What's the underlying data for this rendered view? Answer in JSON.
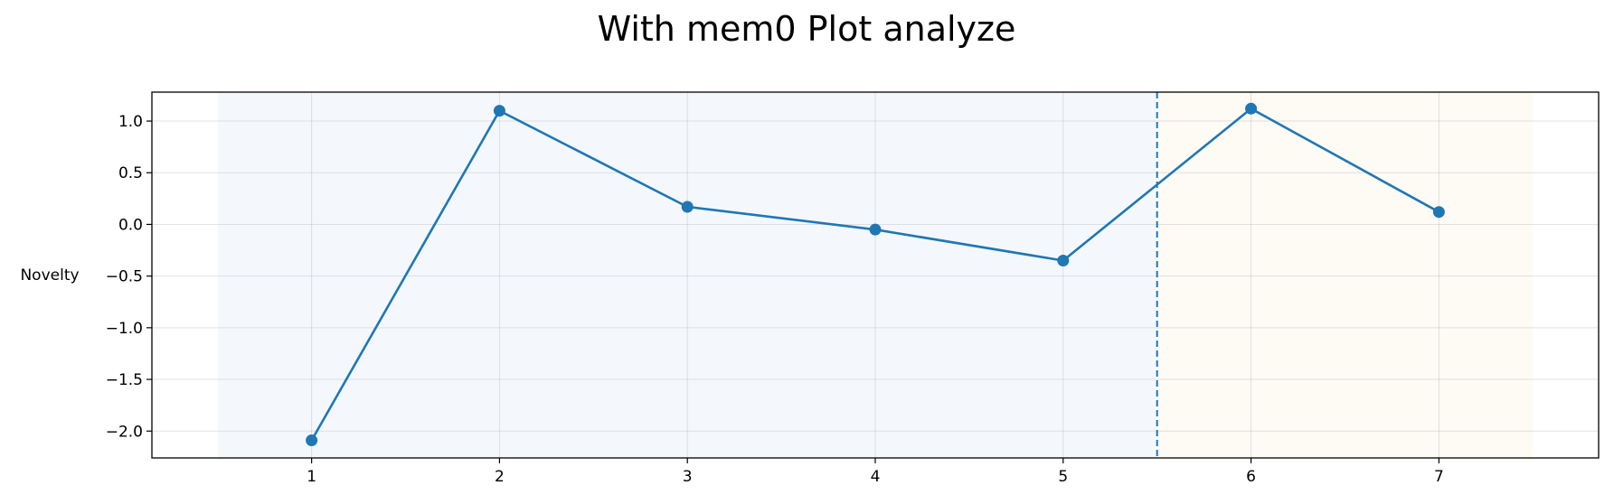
{
  "chart_data": {
    "type": "line",
    "title": "With mem0 Plot analyze",
    "xlabel": "",
    "ylabel": "Novelty",
    "xlim": [
      0.15,
      7.85
    ],
    "ylim": [
      -2.26,
      1.28
    ],
    "xticks": [
      1,
      2,
      3,
      4,
      5,
      6,
      7
    ],
    "xtick_labels": [
      "1",
      "2",
      "3",
      "4",
      "5",
      "6",
      "7"
    ],
    "yticks": [
      1.0,
      0.5,
      0.0,
      -0.5,
      -1.0,
      -1.5,
      -2.0
    ],
    "ytick_labels": [
      "1.0",
      "0.5",
      "0.0",
      "−0.5",
      "−1.0",
      "−1.5",
      "−2.0"
    ],
    "grid": true,
    "series": [
      {
        "color": "#1f77b4",
        "marker": "circle",
        "x": [
          1,
          2,
          3,
          4,
          5,
          6,
          7
        ],
        "y": [
          -2.09,
          1.1,
          0.17,
          -0.05,
          -0.35,
          1.12,
          0.12
        ]
      }
    ],
    "shaded_regions": [
      {
        "x_range": [
          0.5,
          5.5
        ],
        "color": "#4a86d6"
      },
      {
        "x_range": [
          5.5,
          7.5
        ],
        "color": "#f4a340"
      }
    ],
    "vertical_lines": [
      {
        "x": 5.5,
        "style": "dashed",
        "color": "#1f77b4"
      }
    ]
  }
}
